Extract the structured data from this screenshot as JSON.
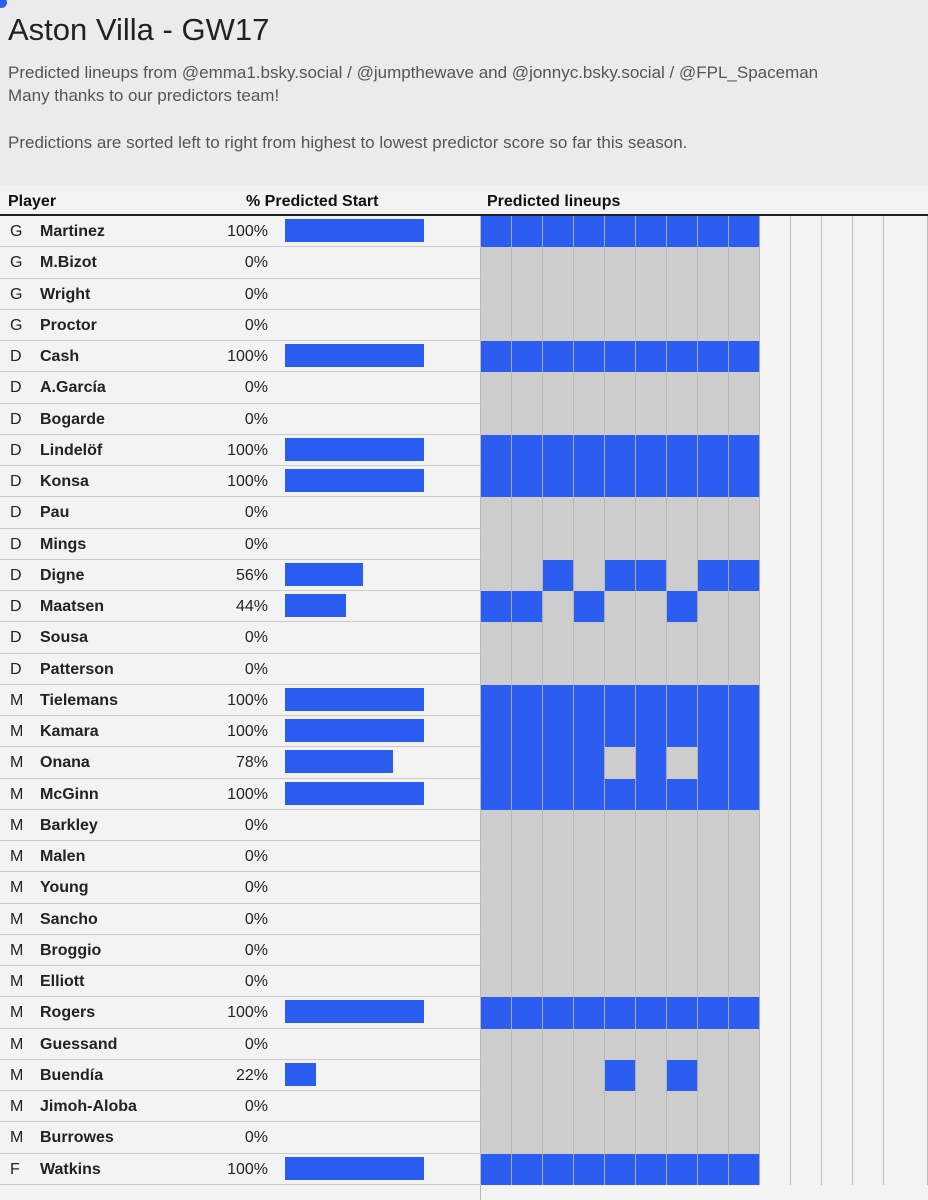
{
  "header": {
    "title": "Aston Villa - GW17",
    "line1": "Predicted lineups from @emma1.bsky.social / @jumpthewave and @jonnyc.bsky.social / @FPL_Spaceman",
    "line2": "Many thanks to our predictors team!",
    "line3": "Predictions are sorted left to right from highest to lowest predictor score so far this season."
  },
  "columns": {
    "player": "Player",
    "pct": "% Predicted Start",
    "lineups": "Predicted lineups"
  },
  "colors": {
    "accent": "#2b5ef0",
    "off_cell": "#cdcdcd",
    "background": "#f3f3f3"
  },
  "chart_data": {
    "type": "table",
    "predictor_count": 9,
    "empty_columns": 5,
    "rows": [
      {
        "pos": "G",
        "name": "Martinez",
        "pct_label": "100%",
        "pct": 100,
        "picks": [
          1,
          1,
          1,
          1,
          1,
          1,
          1,
          1,
          1
        ]
      },
      {
        "pos": "G",
        "name": "M.Bizot",
        "pct_label": "0%",
        "pct": 0,
        "picks": [
          0,
          0,
          0,
          0,
          0,
          0,
          0,
          0,
          0
        ]
      },
      {
        "pos": "G",
        "name": "Wright",
        "pct_label": "0%",
        "pct": 0,
        "picks": [
          0,
          0,
          0,
          0,
          0,
          0,
          0,
          0,
          0
        ]
      },
      {
        "pos": "G",
        "name": "Proctor",
        "pct_label": "0%",
        "pct": 0,
        "picks": [
          0,
          0,
          0,
          0,
          0,
          0,
          0,
          0,
          0
        ]
      },
      {
        "pos": "D",
        "name": "Cash",
        "pct_label": "100%",
        "pct": 100,
        "picks": [
          1,
          1,
          1,
          1,
          1,
          1,
          1,
          1,
          1
        ]
      },
      {
        "pos": "D",
        "name": "A.García",
        "pct_label": "0%",
        "pct": 0,
        "picks": [
          0,
          0,
          0,
          0,
          0,
          0,
          0,
          0,
          0
        ]
      },
      {
        "pos": "D",
        "name": "Bogarde",
        "pct_label": "0%",
        "pct": 0,
        "picks": [
          0,
          0,
          0,
          0,
          0,
          0,
          0,
          0,
          0
        ]
      },
      {
        "pos": "D",
        "name": "Lindelöf",
        "pct_label": "100%",
        "pct": 100,
        "picks": [
          1,
          1,
          1,
          1,
          1,
          1,
          1,
          1,
          1
        ]
      },
      {
        "pos": "D",
        "name": "Konsa",
        "pct_label": "100%",
        "pct": 100,
        "picks": [
          1,
          1,
          1,
          1,
          1,
          1,
          1,
          1,
          1
        ]
      },
      {
        "pos": "D",
        "name": "Pau",
        "pct_label": "0%",
        "pct": 0,
        "picks": [
          0,
          0,
          0,
          0,
          0,
          0,
          0,
          0,
          0
        ]
      },
      {
        "pos": "D",
        "name": "Mings",
        "pct_label": "0%",
        "pct": 0,
        "picks": [
          0,
          0,
          0,
          0,
          0,
          0,
          0,
          0,
          0
        ]
      },
      {
        "pos": "D",
        "name": "Digne",
        "pct_label": "56%",
        "pct": 56,
        "picks": [
          0,
          0,
          1,
          0,
          1,
          1,
          0,
          1,
          1
        ]
      },
      {
        "pos": "D",
        "name": "Maatsen",
        "pct_label": "44%",
        "pct": 44,
        "picks": [
          1,
          1,
          0,
          1,
          0,
          0,
          1,
          0,
          0
        ]
      },
      {
        "pos": "D",
        "name": "Sousa",
        "pct_label": "0%",
        "pct": 0,
        "picks": [
          0,
          0,
          0,
          0,
          0,
          0,
          0,
          0,
          0
        ]
      },
      {
        "pos": "D",
        "name": "Patterson",
        "pct_label": "0%",
        "pct": 0,
        "picks": [
          0,
          0,
          0,
          0,
          0,
          0,
          0,
          0,
          0
        ]
      },
      {
        "pos": "M",
        "name": "Tielemans",
        "pct_label": "100%",
        "pct": 100,
        "picks": [
          1,
          1,
          1,
          1,
          1,
          1,
          1,
          1,
          1
        ]
      },
      {
        "pos": "M",
        "name": "Kamara",
        "pct_label": "100%",
        "pct": 100,
        "picks": [
          1,
          1,
          1,
          1,
          1,
          1,
          1,
          1,
          1
        ]
      },
      {
        "pos": "M",
        "name": "Onana",
        "pct_label": "78%",
        "pct": 78,
        "picks": [
          1,
          1,
          1,
          1,
          0,
          1,
          0,
          1,
          1
        ]
      },
      {
        "pos": "M",
        "name": "McGinn",
        "pct_label": "100%",
        "pct": 100,
        "picks": [
          1,
          1,
          1,
          1,
          1,
          1,
          1,
          1,
          1
        ]
      },
      {
        "pos": "M",
        "name": "Barkley",
        "pct_label": "0%",
        "pct": 0,
        "picks": [
          0,
          0,
          0,
          0,
          0,
          0,
          0,
          0,
          0
        ]
      },
      {
        "pos": "M",
        "name": "Malen",
        "pct_label": "0%",
        "pct": 0,
        "picks": [
          0,
          0,
          0,
          0,
          0,
          0,
          0,
          0,
          0
        ]
      },
      {
        "pos": "M",
        "name": "Young",
        "pct_label": "0%",
        "pct": 0,
        "picks": [
          0,
          0,
          0,
          0,
          0,
          0,
          0,
          0,
          0
        ]
      },
      {
        "pos": "M",
        "name": "Sancho",
        "pct_label": "0%",
        "pct": 0,
        "picks": [
          0,
          0,
          0,
          0,
          0,
          0,
          0,
          0,
          0
        ]
      },
      {
        "pos": "M",
        "name": "Broggio",
        "pct_label": "0%",
        "pct": 0,
        "picks": [
          0,
          0,
          0,
          0,
          0,
          0,
          0,
          0,
          0
        ]
      },
      {
        "pos": "M",
        "name": "Elliott",
        "pct_label": "0%",
        "pct": 0,
        "picks": [
          0,
          0,
          0,
          0,
          0,
          0,
          0,
          0,
          0
        ]
      },
      {
        "pos": "M",
        "name": "Rogers",
        "pct_label": "100%",
        "pct": 100,
        "picks": [
          1,
          1,
          1,
          1,
          1,
          1,
          1,
          1,
          1
        ]
      },
      {
        "pos": "M",
        "name": "Guessand",
        "pct_label": "0%",
        "pct": 0,
        "picks": [
          0,
          0,
          0,
          0,
          0,
          0,
          0,
          0,
          0
        ]
      },
      {
        "pos": "M",
        "name": "Buendía",
        "pct_label": "22%",
        "pct": 22,
        "picks": [
          0,
          0,
          0,
          0,
          1,
          0,
          1,
          0,
          0
        ]
      },
      {
        "pos": "M",
        "name": "Jimoh-Aloba",
        "pct_label": "0%",
        "pct": 0,
        "picks": [
          0,
          0,
          0,
          0,
          0,
          0,
          0,
          0,
          0
        ]
      },
      {
        "pos": "M",
        "name": "Burrowes",
        "pct_label": "0%",
        "pct": 0,
        "picks": [
          0,
          0,
          0,
          0,
          0,
          0,
          0,
          0,
          0
        ]
      },
      {
        "pos": "F",
        "name": "Watkins",
        "pct_label": "100%",
        "pct": 100,
        "picks": [
          1,
          1,
          1,
          1,
          1,
          1,
          1,
          1,
          1
        ]
      }
    ]
  }
}
